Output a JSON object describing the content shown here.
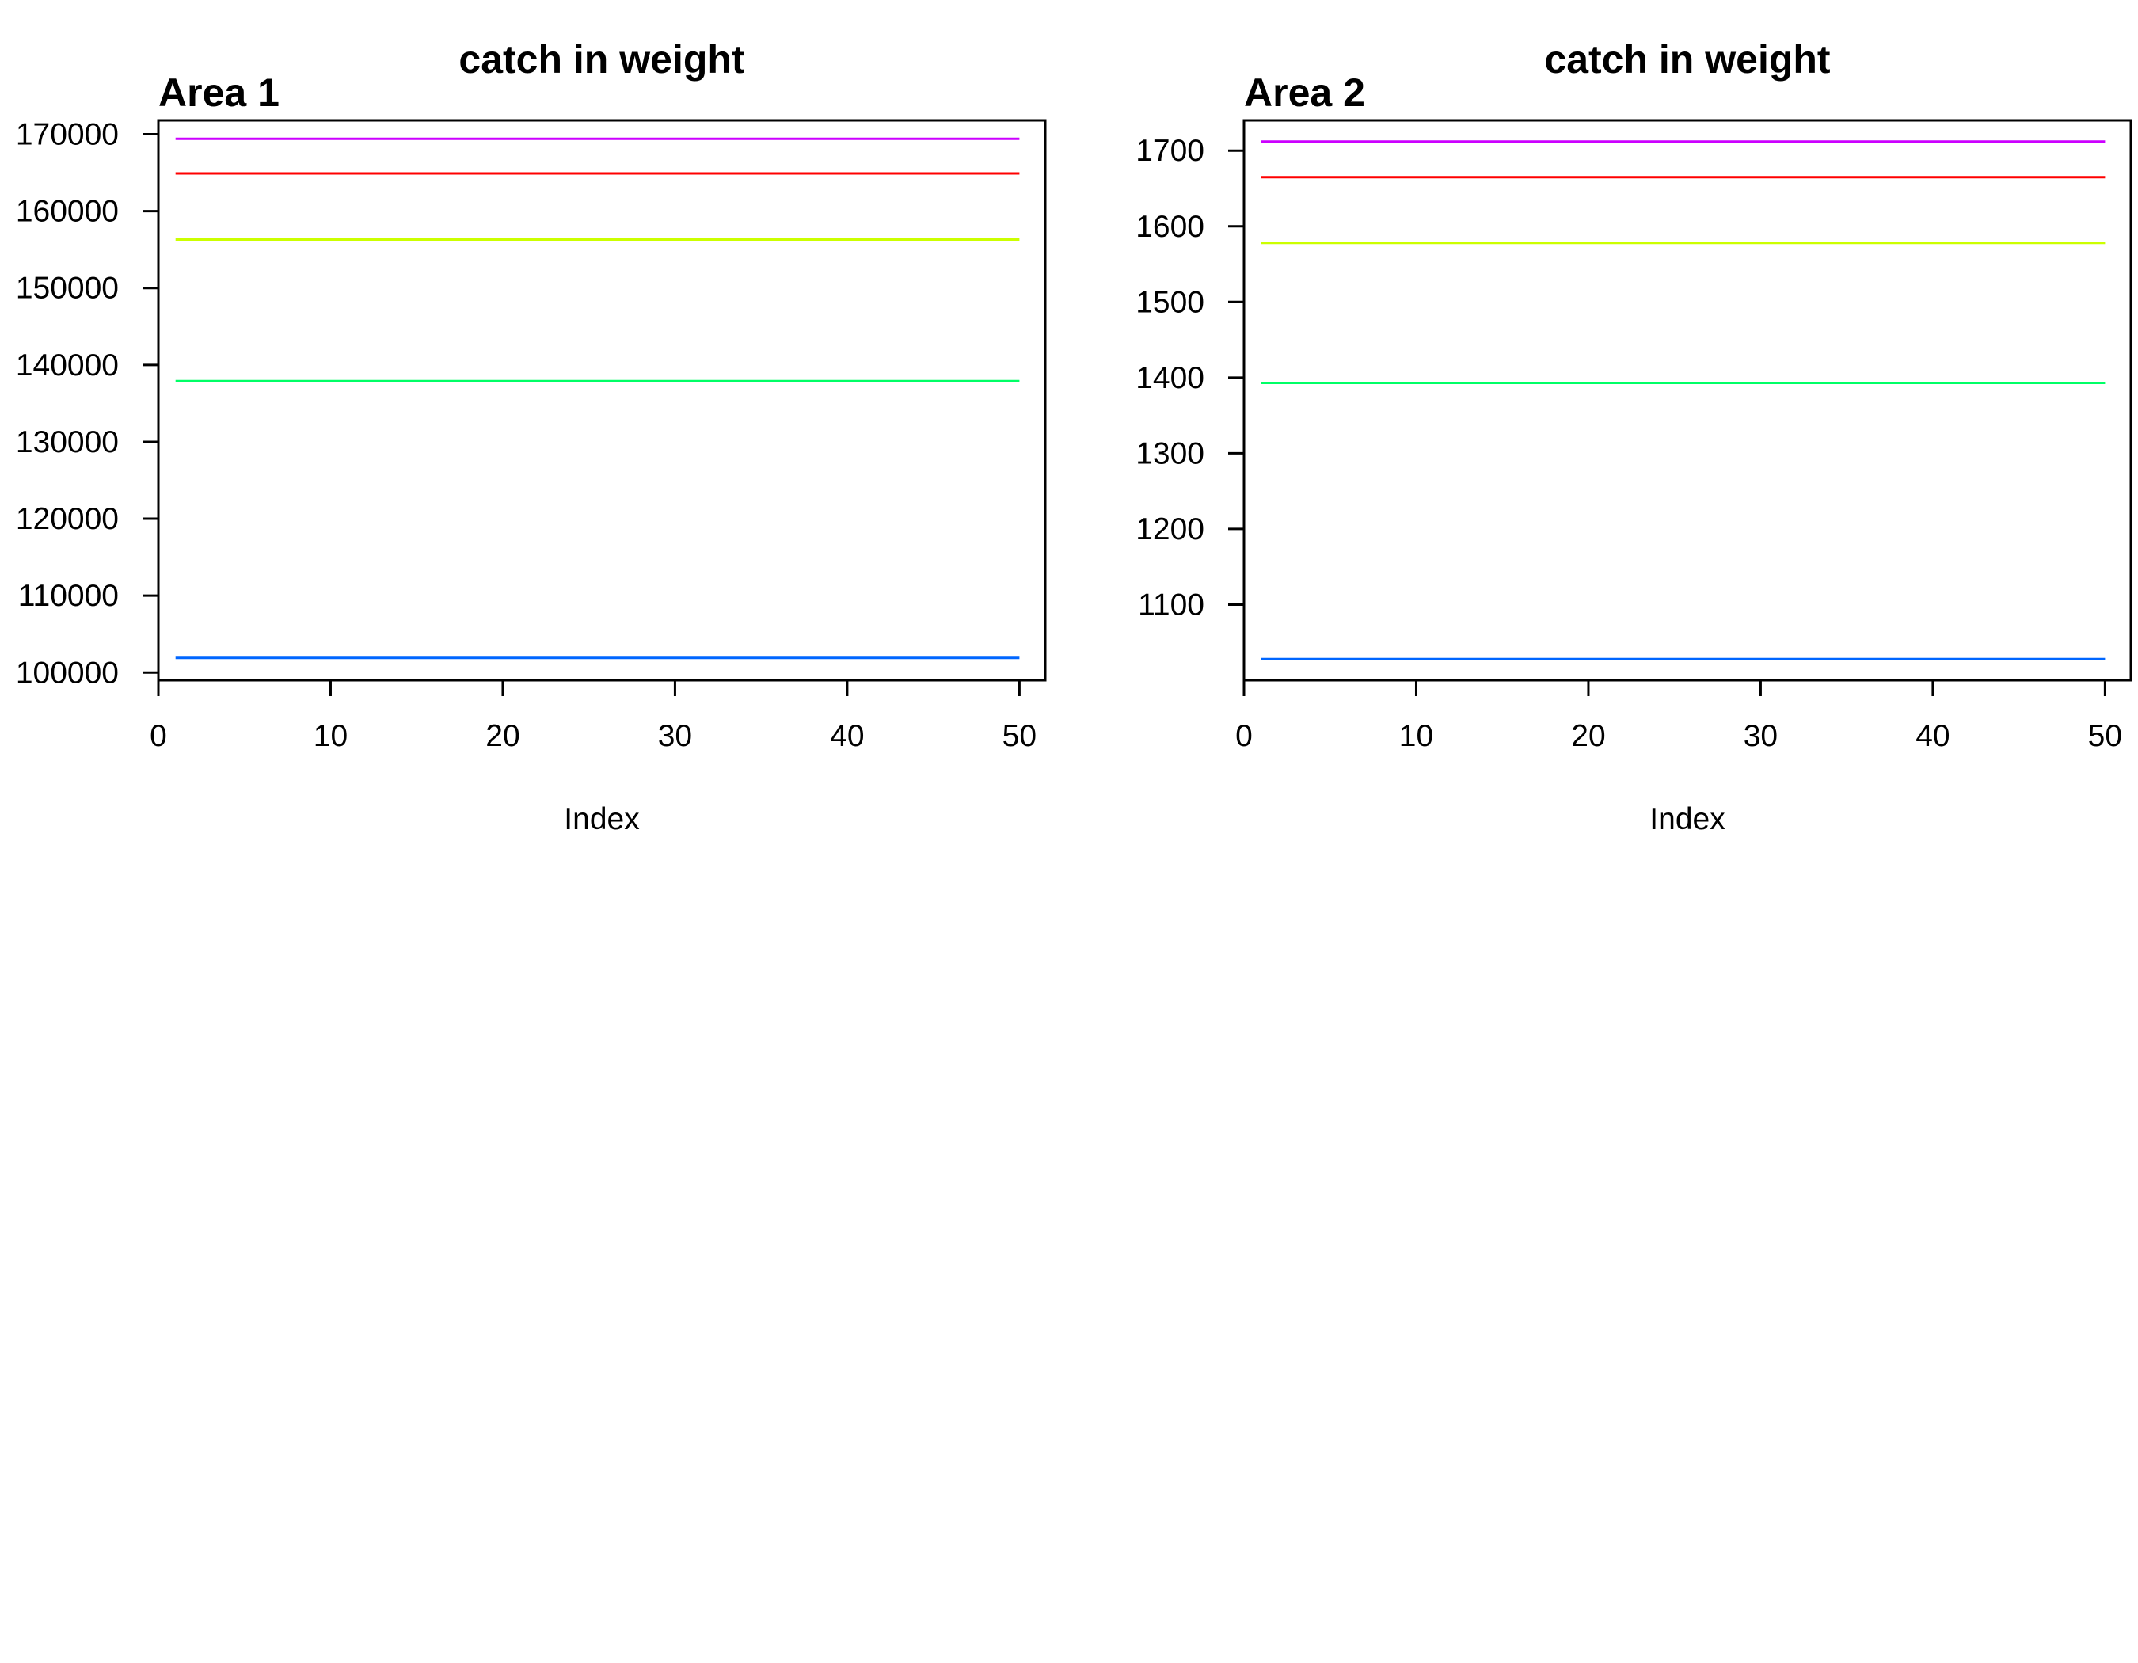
{
  "chart_data": [
    {
      "type": "line",
      "title": "catch in weight",
      "area_label": "Area 1",
      "xlabel": "Index",
      "ylabel": "",
      "xlim": [
        0,
        51.5
      ],
      "ylim": [
        99000,
        171800
      ],
      "x_ticks": [
        0,
        10,
        20,
        30,
        40,
        50
      ],
      "y_ticks": [
        100000,
        110000,
        120000,
        130000,
        140000,
        150000,
        160000,
        170000
      ],
      "x": [
        1,
        50
      ],
      "grid": false,
      "series": [
        {
          "color": "#CC00FF",
          "values": [
            169400,
            169400
          ]
        },
        {
          "color": "#FF0000",
          "values": [
            164900,
            164900
          ]
        },
        {
          "color": "#CCFF00",
          "values": [
            156300,
            156300
          ]
        },
        {
          "color": "#00FF66",
          "values": [
            137900,
            137900
          ]
        },
        {
          "color": "#0066FF",
          "values": [
            101900,
            101900
          ]
        }
      ]
    },
    {
      "type": "line",
      "title": "catch in weight",
      "area_label": "Area 2",
      "xlabel": "Index",
      "ylabel": "",
      "xlim": [
        0,
        51.5
      ],
      "ylim": [
        1000,
        1740
      ],
      "x_ticks": [
        0,
        10,
        20,
        30,
        40,
        50
      ],
      "y_ticks": [
        1100,
        1200,
        1300,
        1400,
        1500,
        1600,
        1700
      ],
      "x": [
        1,
        50
      ],
      "grid": false,
      "series": [
        {
          "color": "#CC00FF",
          "values": [
            1712,
            1712
          ]
        },
        {
          "color": "#FF0000",
          "values": [
            1665,
            1665
          ]
        },
        {
          "color": "#CCFF00",
          "values": [
            1578,
            1578
          ]
        },
        {
          "color": "#00FF66",
          "values": [
            1393,
            1393
          ]
        },
        {
          "color": "#0066FF",
          "values": [
            1028,
            1028
          ]
        }
      ]
    }
  ]
}
